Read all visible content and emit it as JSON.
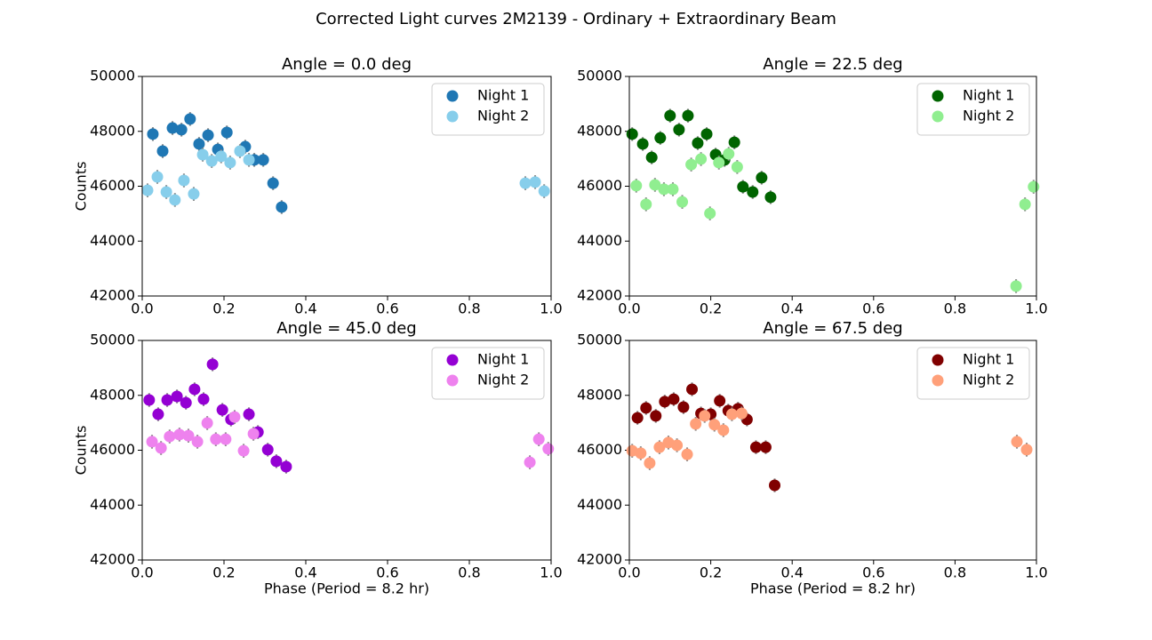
{
  "title": "Corrected Light curves 2M2139 - Ordinary + Extraordinary Beam",
  "chart_data": [
    {
      "type": "scatter",
      "title": "Angle = 0.0 deg",
      "ylabel": "Counts",
      "legend": "upper right",
      "xlim": [
        0,
        1
      ],
      "ylim": [
        42000,
        50000
      ],
      "xticks": [
        {
          "value": 0,
          "label": "0.0"
        },
        {
          "value": 0.2,
          "label": "0.2"
        },
        {
          "value": 0.4,
          "label": "0.4"
        },
        {
          "value": 0.6,
          "label": "0.6"
        },
        {
          "value": 0.8,
          "label": "0.8"
        },
        {
          "value": 1,
          "label": "1.0"
        }
      ],
      "yticks": [
        42000,
        44000,
        46000,
        48000,
        50000
      ],
      "series": [
        {
          "name": "Night 1",
          "color": "#1f77b4",
          "yerr": 250,
          "x": [
            0.026,
            0.05,
            0.074,
            0.096,
            0.117,
            0.139,
            0.161,
            0.185,
            0.207,
            0.252,
            0.274,
            0.296,
            0.32,
            0.341
          ],
          "values": [
            47900,
            47280,
            48120,
            48060,
            48450,
            47540,
            47860,
            47340,
            47960,
            47440,
            46960,
            46960,
            46110,
            45240
          ]
        },
        {
          "name": "Night 2",
          "color": "#87ceeb",
          "yerr": 250,
          "x": [
            0.013,
            0.037,
            0.059,
            0.08,
            0.102,
            0.126,
            0.148,
            0.17,
            0.193,
            0.215,
            0.239,
            0.261,
            0.937,
            0.961,
            0.983
          ],
          "values": [
            45850,
            46340,
            45790,
            45500,
            46210,
            45720,
            47150,
            46920,
            47090,
            46860,
            47280,
            46960,
            46110,
            46150,
            45820
          ]
        }
      ]
    },
    {
      "type": "scatter",
      "title": "Angle = 22.5 deg",
      "legend": "upper right",
      "xlim": [
        0,
        1
      ],
      "ylim": [
        42000,
        50000
      ],
      "xticks": [
        {
          "value": 0,
          "label": "0.0"
        },
        {
          "value": 0.2,
          "label": "0.2"
        },
        {
          "value": 0.4,
          "label": "0.4"
        },
        {
          "value": 0.6,
          "label": "0.6"
        },
        {
          "value": 0.8,
          "label": "0.8"
        },
        {
          "value": 1,
          "label": "1.0"
        }
      ],
      "yticks": [
        42000,
        44000,
        46000,
        48000,
        50000
      ],
      "series": [
        {
          "name": "Night 1",
          "color": "#006400",
          "yerr": 250,
          "x": [
            0.007,
            0.033,
            0.055,
            0.076,
            0.1,
            0.122,
            0.144,
            0.168,
            0.19,
            0.212,
            0.234,
            0.258,
            0.279,
            0.303,
            0.325,
            0.347
          ],
          "values": [
            47900,
            47540,
            47050,
            47760,
            48570,
            48060,
            48570,
            47570,
            47900,
            47150,
            46960,
            47600,
            45980,
            45790,
            46310,
            45600
          ]
        },
        {
          "name": "Night 2",
          "color": "#90ee90",
          "yerr": 250,
          "x": [
            0.017,
            0.041,
            0.063,
            0.085,
            0.107,
            0.13,
            0.152,
            0.176,
            0.198,
            0.22,
            0.244,
            0.265,
            0.95,
            0.972,
            0.993
          ],
          "values": [
            46020,
            45340,
            46050,
            45890,
            45890,
            45430,
            46790,
            46990,
            45010,
            46860,
            47180,
            46700,
            42360,
            45340,
            45980
          ]
        }
      ]
    },
    {
      "type": "scatter",
      "title": "Angle = 45.0 deg",
      "ylabel": "Counts",
      "xlabel": "Phase (Period = 8.2 hr)",
      "legend": "upper right",
      "xlim": [
        0,
        1
      ],
      "ylim": [
        42000,
        50000
      ],
      "xticks": [
        {
          "value": 0,
          "label": "0.0"
        },
        {
          "value": 0.2,
          "label": "0.2"
        },
        {
          "value": 0.4,
          "label": "0.4"
        },
        {
          "value": 0.6,
          "label": "0.6"
        },
        {
          "value": 0.8,
          "label": "0.8"
        },
        {
          "value": 1,
          "label": "1.0"
        }
      ],
      "yticks": [
        42000,
        44000,
        46000,
        48000,
        50000
      ],
      "series": [
        {
          "name": "Night 1",
          "color": "#9400d3",
          "yerr": 250,
          "x": [
            0.017,
            0.039,
            0.061,
            0.085,
            0.107,
            0.128,
            0.15,
            0.172,
            0.196,
            0.217,
            0.261,
            0.283,
            0.307,
            0.328,
            0.352
          ],
          "values": [
            47830,
            47310,
            47830,
            47960,
            47730,
            48220,
            47860,
            49130,
            47470,
            47120,
            47310,
            46660,
            46020,
            45600,
            45400
          ]
        },
        {
          "name": "Night 2",
          "color": "#ee82ee",
          "yerr": 250,
          "x": [
            0.024,
            0.046,
            0.067,
            0.091,
            0.113,
            0.135,
            0.159,
            0.18,
            0.204,
            0.226,
            0.248,
            0.272,
            0.948,
            0.97,
            0.993
          ],
          "values": [
            46310,
            46080,
            46500,
            46570,
            46530,
            46310,
            46990,
            46400,
            46400,
            47210,
            45980,
            46600,
            45560,
            46400,
            46050
          ]
        }
      ]
    },
    {
      "type": "scatter",
      "title": "Angle = 67.5 deg",
      "xlabel": "Phase (Period = 8.2 hr)",
      "legend": "upper right",
      "xlim": [
        0,
        1
      ],
      "ylim": [
        42000,
        50000
      ],
      "xticks": [
        {
          "value": 0,
          "label": "0.0"
        },
        {
          "value": 0.2,
          "label": "0.2"
        },
        {
          "value": 0.4,
          "label": "0.4"
        },
        {
          "value": 0.6,
          "label": "0.6"
        },
        {
          "value": 0.8,
          "label": "0.8"
        },
        {
          "value": 1,
          "label": "1.0"
        }
      ],
      "yticks": [
        42000,
        44000,
        46000,
        48000,
        50000
      ],
      "series": [
        {
          "name": "Night 1",
          "color": "#800000",
          "yerr": 250,
          "x": [
            0.02,
            0.041,
            0.065,
            0.087,
            0.109,
            0.133,
            0.154,
            0.176,
            0.2,
            0.222,
            0.243,
            0.267,
            0.289,
            0.311,
            0.335,
            0.357
          ],
          "values": [
            47180,
            47540,
            47250,
            47770,
            47860,
            47570,
            48220,
            47340,
            47310,
            47800,
            47440,
            47510,
            47120,
            46110,
            46110,
            44720
          ]
        },
        {
          "name": "Night 2",
          "color": "#ffa07a",
          "yerr": 250,
          "x": [
            0.007,
            0.028,
            0.05,
            0.074,
            0.096,
            0.117,
            0.142,
            0.163,
            0.185,
            0.209,
            0.231,
            0.252,
            0.276,
            0.952,
            0.976
          ],
          "values": [
            45980,
            45890,
            45530,
            46110,
            46280,
            46180,
            45850,
            46960,
            47250,
            46930,
            46730,
            47310,
            47340,
            46310,
            46020
          ]
        }
      ]
    }
  ]
}
